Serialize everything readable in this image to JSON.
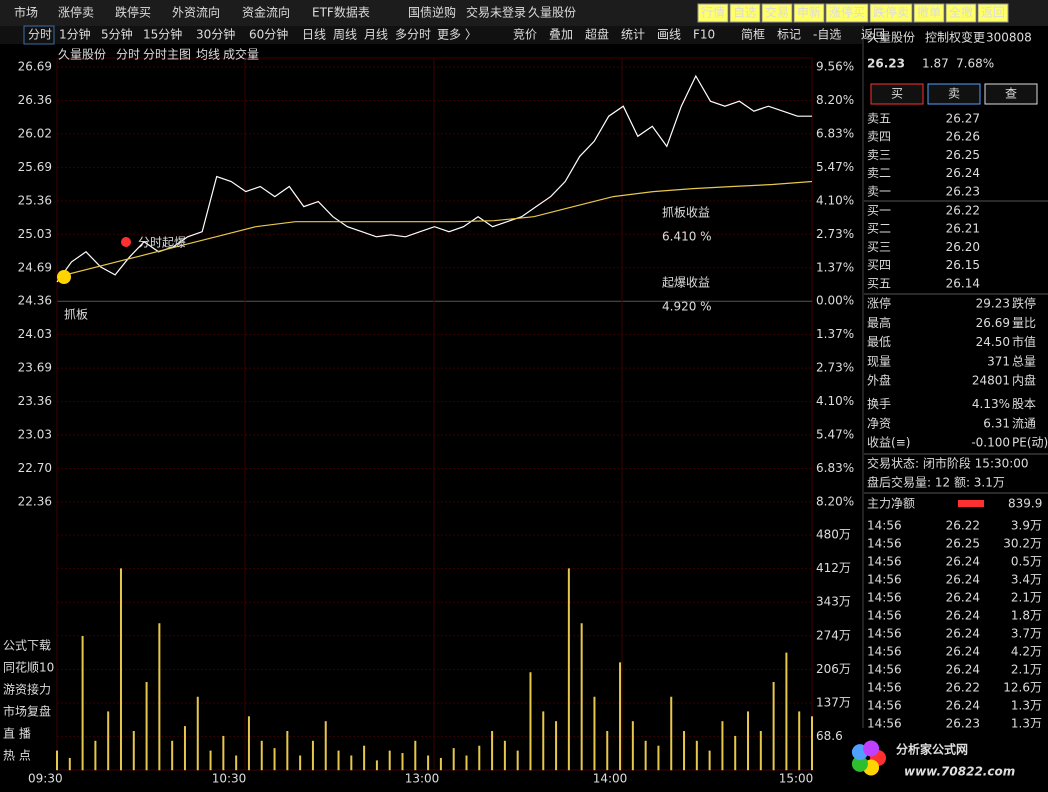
{
  "menu": [
    "市场",
    "涨停卖",
    "跌停买",
    "外资流向",
    "资金流向",
    "ETF数据表",
    "国债逆购"
  ],
  "login": "交易未登录",
  "stock_tab": "久量股份",
  "buttons": [
    "行情",
    "自选",
    "交易",
    "申新",
    "涨停买",
    "跌停卖",
    "撤单",
    "全撤",
    "返回"
  ],
  "periods": [
    "分时",
    "1分钟",
    "5分钟",
    "15分钟",
    "30分钟",
    "60分钟",
    "日线",
    "周线",
    "月线",
    "多分时",
    "更多 〉"
  ],
  "tools": [
    "竞价",
    "叠加",
    "超盘",
    "统计",
    "画线",
    "F10",
    "简框",
    "标记",
    "-自选",
    "返回"
  ],
  "chart": {
    "header": [
      "久量股份",
      "分时",
      "分时主图"
    ],
    "ma_label": "均线",
    "vol_label": "成交量",
    "price_ticks": [
      "26.69",
      "26.36",
      "26.02",
      "25.69",
      "25.36",
      "25.03",
      "24.69",
      "24.36",
      "24.03",
      "23.69",
      "23.36",
      "23.03",
      "22.70",
      "22.36"
    ],
    "pct_ticks": [
      "9.56%",
      "8.20%",
      "6.83%",
      "5.47%",
      "4.10%",
      "2.73%",
      "1.37%",
      "0.00%",
      "1.37%",
      "2.73%",
      "4.10%",
      "5.47%",
      "6.83%",
      "8.20%"
    ],
    "vol_ticks": [
      "480万",
      "412万",
      "343万",
      "274万",
      "206万",
      "137万",
      "68.6万"
    ],
    "time_ticks": [
      "09:30",
      "10:30",
      "13:00",
      "14:00",
      "15:00"
    ],
    "price": [
      24.55,
      24.75,
      24.85,
      24.7,
      24.62,
      24.8,
      24.95,
      24.85,
      24.9,
      25.0,
      25.05,
      25.6,
      25.55,
      25.45,
      25.5,
      25.4,
      25.5,
      25.3,
      25.35,
      25.2,
      25.1,
      25.05,
      25.0,
      25.02,
      25.0,
      25.05,
      25.1,
      25.05,
      25.1,
      25.2,
      25.1,
      25.15,
      25.2,
      25.3,
      25.4,
      25.55,
      25.8,
      25.95,
      26.2,
      26.3,
      26.0,
      26.1,
      25.9,
      26.3,
      26.6,
      26.35,
      26.3,
      26.35,
      26.25,
      26.3,
      26.25,
      26.2,
      26.2
    ],
    "avg": [
      24.6,
      24.7,
      24.8,
      24.9,
      25.0,
      25.1,
      25.15,
      25.15,
      25.15,
      25.15,
      25.15,
      25.16,
      25.2,
      25.3,
      25.4,
      25.45,
      25.48,
      25.5,
      25.52,
      25.55
    ],
    "volume": [
      40,
      25,
      274,
      60,
      120,
      412,
      80,
      180,
      300,
      60,
      90,
      150,
      40,
      70,
      30,
      110,
      60,
      45,
      80,
      30,
      60,
      100,
      40,
      30,
      50,
      20,
      40,
      35,
      60,
      30,
      25,
      45,
      30,
      50,
      80,
      60,
      40,
      200,
      120,
      100,
      412,
      300,
      150,
      80,
      220,
      100,
      60,
      50,
      150,
      80,
      60,
      40,
      100,
      70,
      120,
      80,
      180,
      240,
      120,
      110
    ],
    "signal_buy": "抓板",
    "signal_fire": "分时起爆",
    "gain1_label": "抓板收益",
    "gain1": "6.410 %",
    "gain2_label": "起爆收益",
    "gain2": "4.920 %"
  },
  "side_menu": [
    "公式下载",
    "同花顺10",
    "游资接力",
    "市场复盘",
    "直 播",
    "热 点"
  ],
  "quote": {
    "name": "久量股份",
    "tag": "控制权变更",
    "code": "300808",
    "price": "26.23",
    "change": "1.87",
    "pct": "7.68%"
  },
  "actions": [
    "买",
    "卖",
    "查"
  ],
  "asks": [
    [
      "卖五",
      "26.27"
    ],
    [
      "卖四",
      "26.26"
    ],
    [
      "卖三",
      "26.25"
    ],
    [
      "卖二",
      "26.24"
    ],
    [
      "卖一",
      "26.23"
    ]
  ],
  "bids": [
    [
      "买一",
      "26.22"
    ],
    [
      "买二",
      "26.21"
    ],
    [
      "买三",
      "26.20"
    ],
    [
      "买四",
      "26.15"
    ],
    [
      "买五",
      "26.14"
    ]
  ],
  "stats": [
    [
      "涨停",
      "29.23",
      "跌停"
    ],
    [
      "最高",
      "26.69",
      "量比"
    ],
    [
      "最低",
      "24.50",
      "市值"
    ],
    [
      "现量",
      "371",
      "总量"
    ],
    [
      "外盘",
      "24801",
      "内盘"
    ],
    [
      "换手",
      "4.13%",
      "股本"
    ],
    [
      "净资",
      "6.31",
      "流通"
    ],
    [
      "收益(≡)",
      "-0.100",
      "PE(动)"
    ]
  ],
  "status": [
    "交易状态: 闭市阶段 15:30:00",
    "盘后交易量: 12  额: 3.1万"
  ],
  "flow": {
    "label": "主力净额",
    "value": "839.9"
  },
  "trades": [
    [
      "14:56",
      "26.22",
      "3.9万"
    ],
    [
      "14:56",
      "26.25",
      "30.2万"
    ],
    [
      "14:56",
      "26.24",
      "0.5万"
    ],
    [
      "14:56",
      "26.24",
      "3.4万"
    ],
    [
      "14:56",
      "26.24",
      "2.1万"
    ],
    [
      "14:56",
      "26.24",
      "1.8万"
    ],
    [
      "14:56",
      "26.24",
      "3.7万"
    ],
    [
      "14:56",
      "26.24",
      "4.2万"
    ],
    [
      "14:56",
      "26.24",
      "2.1万"
    ],
    [
      "14:56",
      "26.22",
      "12.6万"
    ],
    [
      "14:56",
      "26.24",
      "1.3万"
    ],
    [
      "14:56",
      "26.23",
      "1.3万"
    ]
  ],
  "logo": {
    "name": "分析家公式网",
    "url": "www.70822.com"
  }
}
